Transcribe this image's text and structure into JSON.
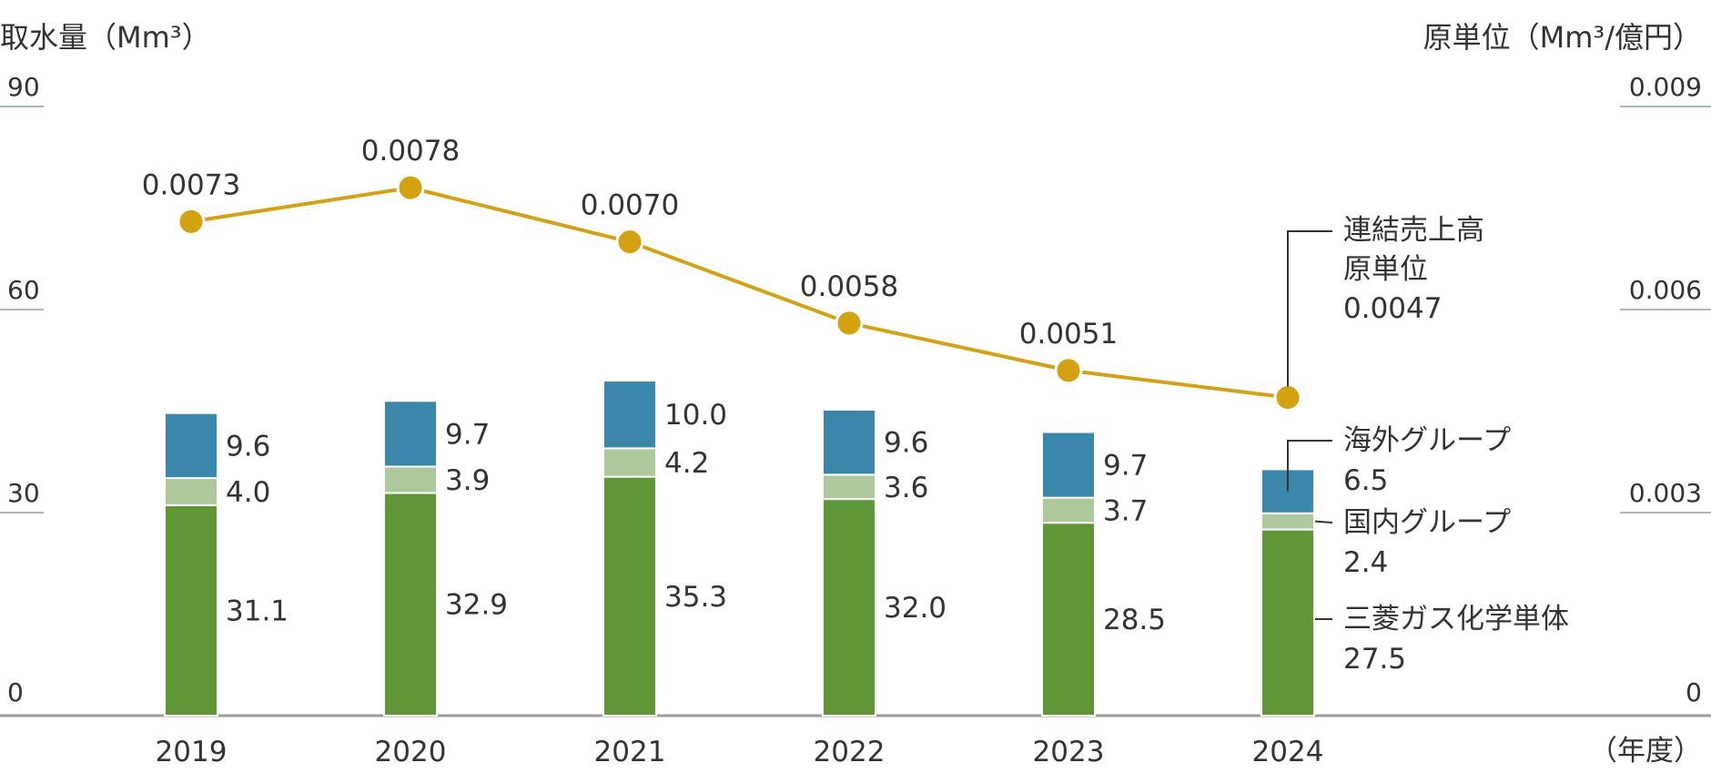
{
  "chart_data": {
    "type": "bar",
    "subtype": "stacked-bar-with-line",
    "title": "",
    "left_axis_label": "取水量（Mm³）",
    "right_axis_label": "原単位（Mm³/億円）",
    "x_axis_label": "（年度）",
    "categories": [
      "2019",
      "2020",
      "2021",
      "2022",
      "2023",
      "2024"
    ],
    "left_axis": {
      "ticks": [
        "0",
        "30",
        "60",
        "90"
      ],
      "range": [
        0,
        90
      ]
    },
    "right_axis": {
      "ticks": [
        "0",
        "0.003",
        "0.006",
        "0.009"
      ],
      "range": [
        0,
        0.009
      ]
    },
    "series": [
      {
        "name": "三菱ガス化学単体",
        "values": [
          31.1,
          32.9,
          35.3,
          32.0,
          28.5,
          27.5
        ],
        "labels": [
          "31.1",
          "32.9",
          "35.3",
          "32.0",
          "28.5",
          "27.5"
        ],
        "color": "#5f9736"
      },
      {
        "name": "国内グループ",
        "values": [
          4.0,
          3.9,
          4.2,
          3.6,
          3.7,
          2.4
        ],
        "labels": [
          "4.0",
          "3.9",
          "4.2",
          "3.6",
          "3.7",
          "2.4"
        ],
        "color": "#adc99b"
      },
      {
        "name": "海外グループ",
        "values": [
          9.6,
          9.7,
          10.0,
          9.6,
          9.7,
          6.5
        ],
        "labels": [
          "9.6",
          "9.7",
          "10.0",
          "9.6",
          "9.7",
          "6.5"
        ],
        "color": "#3b87ab"
      }
    ],
    "line_series": {
      "name_lines": [
        "連結売上高",
        "原単位"
      ],
      "values": [
        0.0073,
        0.0078,
        0.007,
        0.0058,
        0.0051,
        0.0047
      ],
      "labels": [
        "0.0073",
        "0.0078",
        "0.0070",
        "0.0058",
        "0.0051",
        "0.0047"
      ],
      "color": "#d4a20f"
    },
    "grid": false,
    "legend": "right-side callouts"
  }
}
